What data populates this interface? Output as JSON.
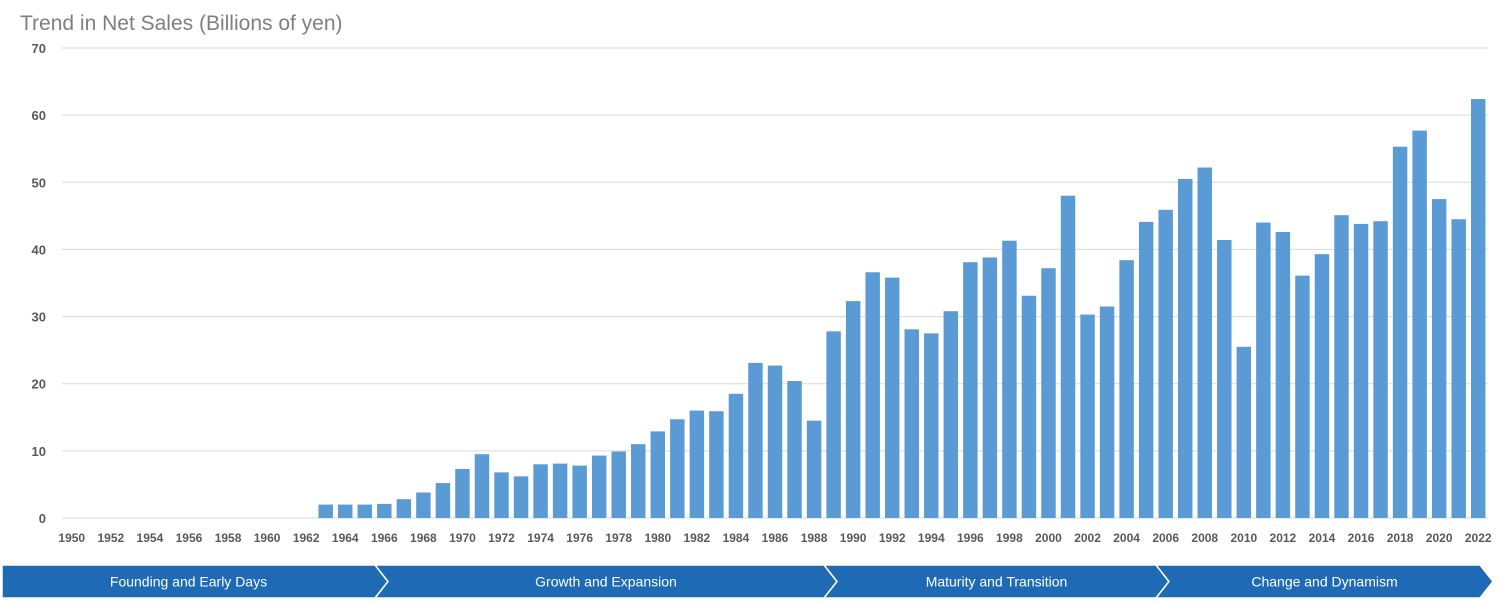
{
  "chart_data": {
    "type": "bar",
    "title": "Trend in Net Sales (Billions of yen)",
    "xlabel": "",
    "ylabel": "",
    "ylim": [
      0,
      70
    ],
    "yticks": [
      0,
      10,
      20,
      30,
      40,
      50,
      60,
      70
    ],
    "grid": true,
    "legend": "none",
    "bar_color": "#5b9bd5",
    "categories": [
      1950,
      1951,
      1952,
      1953,
      1954,
      1955,
      1956,
      1957,
      1958,
      1959,
      1960,
      1961,
      1962,
      1963,
      1964,
      1965,
      1966,
      1967,
      1968,
      1969,
      1970,
      1971,
      1972,
      1973,
      1974,
      1975,
      1976,
      1977,
      1978,
      1979,
      1980,
      1981,
      1982,
      1983,
      1984,
      1985,
      1986,
      1987,
      1988,
      1989,
      1990,
      1991,
      1992,
      1993,
      1994,
      1995,
      1996,
      1997,
      1998,
      1999,
      2000,
      2001,
      2002,
      2003,
      2004,
      2005,
      2006,
      2007,
      2008,
      2009,
      2010,
      2011,
      2012,
      2013,
      2014,
      2015,
      2016,
      2017,
      2018,
      2019,
      2020,
      2021,
      2022
    ],
    "tick_labels": [
      "1950",
      "1952",
      "1954",
      "1956",
      "1958",
      "1960",
      "1962",
      "1964",
      "1966",
      "1968",
      "1970",
      "1972",
      "1974",
      "1976",
      "1978",
      "1980",
      "1982",
      "1984",
      "1986",
      "1988",
      "1990",
      "1992",
      "1994",
      "1996",
      "1998",
      "2000",
      "2002",
      "2004",
      "2006",
      "2008",
      "2010",
      "2012",
      "2014",
      "2016",
      "2018",
      "2020",
      "2022"
    ],
    "values": [
      0,
      0,
      0,
      0,
      0,
      0,
      0,
      0,
      0,
      0,
      0,
      0,
      0,
      2.0,
      2.0,
      2.0,
      2.1,
      2.8,
      3.8,
      5.2,
      7.3,
      9.5,
      6.8,
      6.2,
      8.0,
      8.1,
      7.8,
      9.3,
      9.9,
      11.0,
      12.9,
      14.7,
      16.0,
      15.9,
      18.5,
      23.1,
      22.7,
      20.4,
      14.5,
      27.8,
      32.3,
      36.6,
      35.8,
      28.1,
      27.5,
      30.8,
      38.1,
      38.8,
      41.3,
      33.1,
      37.2,
      48.0,
      30.3,
      31.5,
      38.4,
      44.1,
      45.9,
      50.5,
      52.2,
      41.4,
      25.5,
      44.0,
      42.6,
      36.1,
      39.3,
      45.1,
      43.8,
      44.2,
      55.3,
      57.7,
      47.5,
      44.5,
      62.4
    ]
  },
  "eras": [
    {
      "label": "Founding and Early Days",
      "start": 1950,
      "end": 1966
    },
    {
      "label": "Growth and Expansion",
      "start": 1966,
      "end": 1989
    },
    {
      "label": "Maturity and Transition",
      "start": 1989,
      "end": 2006
    },
    {
      "label": "Change and Dynamism",
      "start": 2006,
      "end": 2022
    }
  ],
  "era_color": "#1e6ab4"
}
